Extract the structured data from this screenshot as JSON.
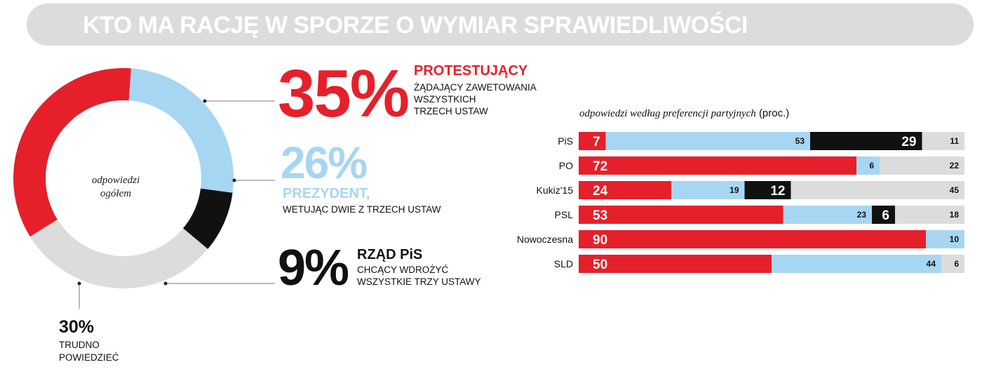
{
  "header": {
    "title": "KTO MA RACJĘ W SPORZE O WYMIAR SPRAWIEDLIWOŚCI"
  },
  "colors": {
    "red": "#e5202b",
    "blue": "#a7d6f2",
    "black": "#111111",
    "grey": "#dcdcdc",
    "banner": "#dcdcdc"
  },
  "overall": {
    "center_line1": "odpowiedzi",
    "center_line2": "ogółem",
    "protestujacy": {
      "pct": "35%",
      "title": "PROTESTUJĄCY",
      "desc1": "żądający zawetowania",
      "desc2": "wszystkich",
      "desc3": "trzech ustaw"
    },
    "prezydent": {
      "pct": "26%",
      "title": "PREZYDENT,",
      "desc1": "wetując dwie z trzech ustaw"
    },
    "rzad": {
      "pct": "9%",
      "title": "RZĄD PiS",
      "desc1": "chcący wdrożyć",
      "desc2": "wszystkie trzy ustawy"
    },
    "trudno": {
      "pct": "30%",
      "desc1": "TRUDNO",
      "desc2": "POWIEDZIEĆ"
    }
  },
  "breakdown": {
    "subtitle_italic": "odpowiedzi według preferencji partyjnych",
    "subtitle_unit": "(proc.)"
  },
  "chart_data": [
    {
      "type": "pie",
      "title": "odpowiedzi ogółem",
      "categories": [
        "Protestujący",
        "Prezydent",
        "Rząd PiS",
        "Trudno powiedzieć"
      ],
      "values": [
        35,
        26,
        9,
        30
      ]
    },
    {
      "type": "bar",
      "stacked": true,
      "orientation": "horizontal",
      "title": "odpowiedzi według preferencji partyjnych (proc.)",
      "categories": [
        "PiS",
        "PO",
        "Kukiz'15",
        "PSL",
        "Nowoczesna",
        "SLD"
      ],
      "series": [
        {
          "name": "Protestujący",
          "values": [
            7,
            72,
            24,
            53,
            90,
            50
          ]
        },
        {
          "name": "Prezydent",
          "values": [
            53,
            6,
            19,
            23,
            10,
            44
          ]
        },
        {
          "name": "Rząd PiS",
          "values": [
            29,
            0,
            12,
            6,
            0,
            0
          ]
        },
        {
          "name": "Trudno powiedzieć",
          "values": [
            11,
            22,
            45,
            18,
            0,
            6
          ]
        }
      ],
      "xlim": [
        0,
        100
      ]
    }
  ]
}
